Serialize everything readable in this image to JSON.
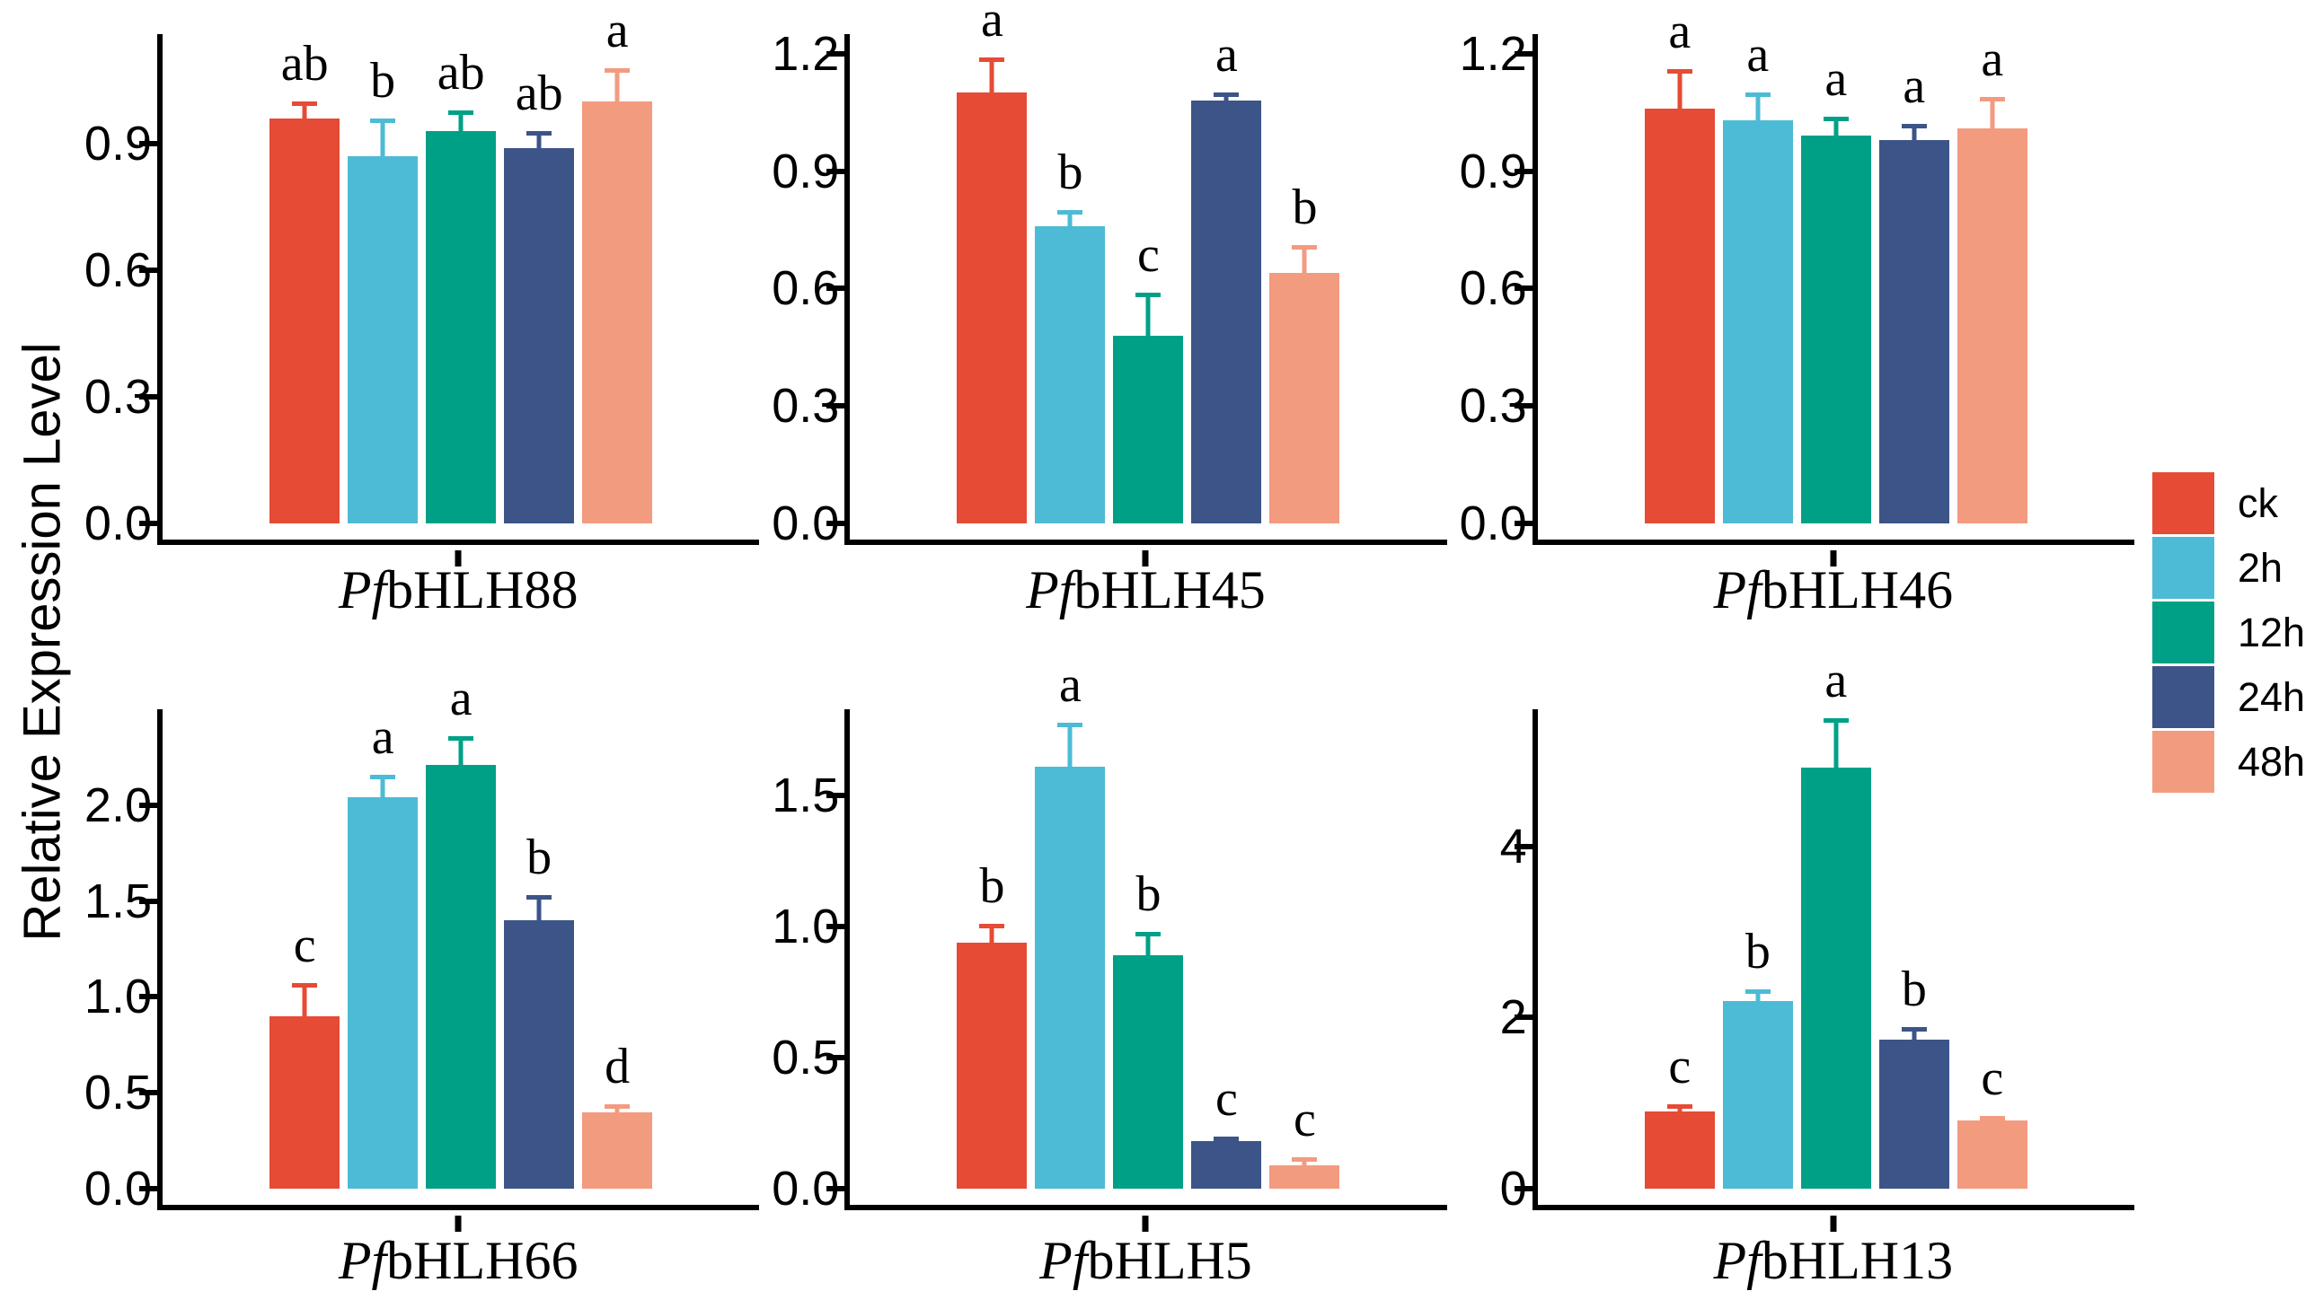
{
  "figure": {
    "ylabel": "Relative Expression Level",
    "background": "#ffffff",
    "axis_color": "#000000"
  },
  "legend": {
    "items": [
      {
        "label": "ck",
        "color": "#E64B35"
      },
      {
        "label": "2h",
        "color": "#4DBBD5"
      },
      {
        "label": "12h",
        "color": "#00A087"
      },
      {
        "label": "24h",
        "color": "#3C5488"
      },
      {
        "label": "48h",
        "color": "#F39B7F"
      }
    ]
  },
  "chart_data": [
    {
      "type": "bar",
      "row": 1,
      "gene_prefix": "Pf",
      "gene_name": "bHLH88",
      "gene_full": "PfbHLH88",
      "categories": [
        "ck",
        "2h",
        "12h",
        "24h",
        "48h"
      ],
      "values": [
        0.96,
        0.87,
        0.93,
        0.89,
        1.0
      ],
      "errors": [
        0.04,
        0.09,
        0.05,
        0.04,
        0.08
      ],
      "sig_letters": [
        "ab",
        "b",
        "ab",
        "ab",
        "a"
      ],
      "yticks": [
        0.0,
        0.3,
        0.6,
        0.9
      ],
      "ytick_labels": [
        "0.0",
        "0.3",
        "0.6",
        "0.9"
      ],
      "ylim": [
        0,
        1.16
      ]
    },
    {
      "type": "bar",
      "row": 1,
      "gene_prefix": "Pf",
      "gene_name": "bHLH45",
      "gene_full": "PfbHLH45",
      "categories": [
        "ck",
        "2h",
        "12h",
        "24h",
        "48h"
      ],
      "values": [
        1.1,
        0.76,
        0.48,
        1.08,
        0.64
      ],
      "errors": [
        0.09,
        0.04,
        0.11,
        0.02,
        0.07
      ],
      "sig_letters": [
        "a",
        "b",
        "c",
        "a",
        "b"
      ],
      "yticks": [
        0.0,
        0.3,
        0.6,
        0.9,
        1.2
      ],
      "ytick_labels": [
        "0.0",
        "0.3",
        "0.6",
        "0.9",
        "1.2"
      ],
      "ylim": [
        0,
        1.25
      ]
    },
    {
      "type": "bar",
      "row": 1,
      "gene_prefix": "Pf",
      "gene_name": "bHLH46",
      "gene_full": "PfbHLH46",
      "categories": [
        "ck",
        "2h",
        "12h",
        "24h",
        "48h"
      ],
      "values": [
        1.06,
        1.03,
        0.99,
        0.98,
        1.01
      ],
      "errors": [
        0.1,
        0.07,
        0.05,
        0.04,
        0.08
      ],
      "sig_letters": [
        "a",
        "a",
        "a",
        "a",
        "a"
      ],
      "yticks": [
        0.0,
        0.3,
        0.6,
        0.9,
        1.2
      ],
      "ytick_labels": [
        "0.0",
        "0.3",
        "0.6",
        "0.9",
        "1.2"
      ],
      "ylim": [
        0,
        1.25
      ]
    },
    {
      "type": "bar",
      "row": 2,
      "gene_prefix": "Pf",
      "gene_name": "bHLH66",
      "gene_full": "PfbHLH66",
      "categories": [
        "ck",
        "2h",
        "12h",
        "24h",
        "48h"
      ],
      "values": [
        0.9,
        2.04,
        2.21,
        1.4,
        0.4
      ],
      "errors": [
        0.17,
        0.12,
        0.15,
        0.13,
        0.04
      ],
      "sig_letters": [
        "c",
        "a",
        "a",
        "b",
        "d"
      ],
      "yticks": [
        0.0,
        0.5,
        1.0,
        1.5,
        2.0
      ],
      "ytick_labels": [
        "0.0",
        "0.5",
        "1.0",
        "1.5",
        "2.0"
      ],
      "ylim": [
        0,
        2.5
      ]
    },
    {
      "type": "bar",
      "row": 2,
      "gene_prefix": "Pf",
      "gene_name": "bHLH5",
      "gene_full": "PfbHLH5",
      "categories": [
        "ck",
        "2h",
        "12h",
        "24h",
        "48h"
      ],
      "values": [
        0.94,
        1.61,
        0.89,
        0.18,
        0.09
      ],
      "errors": [
        0.07,
        0.17,
        0.09,
        0.02,
        0.03
      ],
      "sig_letters": [
        "b",
        "a",
        "b",
        "c",
        "c"
      ],
      "yticks": [
        0.0,
        0.5,
        1.0,
        1.5
      ],
      "ytick_labels": [
        "0.0",
        "0.5",
        "1.0",
        "1.5"
      ],
      "ylim": [
        0,
        1.83
      ]
    },
    {
      "type": "bar",
      "row": 2,
      "gene_prefix": "Pf",
      "gene_name": "bHLH13",
      "gene_full": "PfbHLH13",
      "categories": [
        "ck",
        "2h",
        "12h",
        "24h",
        "48h"
      ],
      "values": [
        0.9,
        2.19,
        4.92,
        1.74,
        0.8
      ],
      "errors": [
        0.09,
        0.14,
        0.58,
        0.15,
        0.05
      ],
      "sig_letters": [
        "c",
        "b",
        "a",
        "b",
        "c"
      ],
      "yticks": [
        0,
        2,
        4
      ],
      "ytick_labels": [
        "0",
        "2",
        "4"
      ],
      "ylim": [
        0,
        5.6
      ]
    }
  ],
  "layout": {
    "row1_plot_height": 569,
    "row2_plot_height": 558,
    "zero_gap": 24
  }
}
